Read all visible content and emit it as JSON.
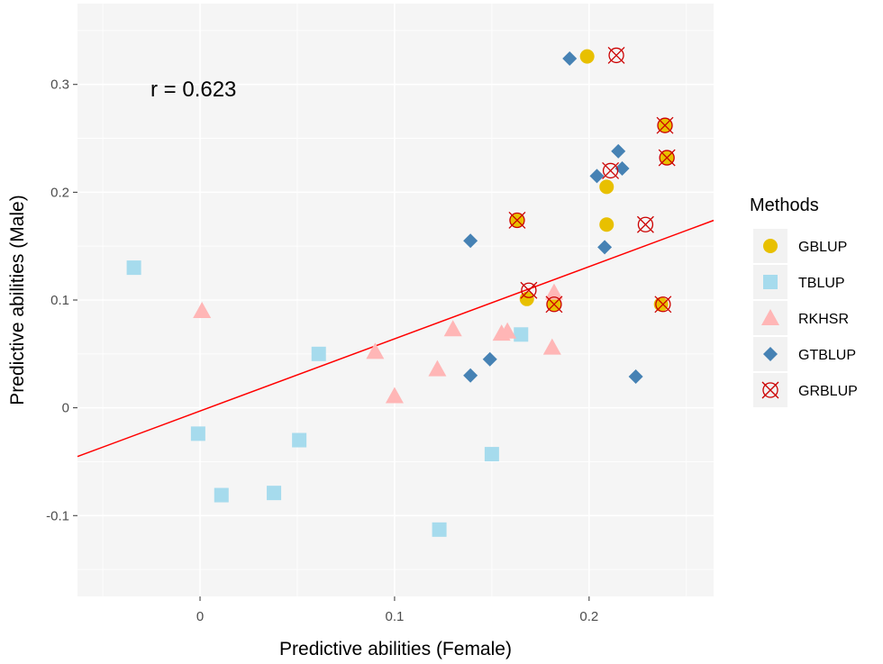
{
  "chart_data": {
    "type": "scatter",
    "title": "",
    "xlabel": "Predictive abilities (Female)",
    "ylabel": "Predictive abilities (Male)",
    "xlim": [
      -0.063,
      0.264
    ],
    "ylim": [
      -0.175,
      0.375
    ],
    "x_ticks": [
      0,
      0.1,
      0.2
    ],
    "x_tick_labels": [
      "0",
      "0.1",
      "0.2"
    ],
    "y_ticks": [
      -0.1,
      0,
      0.1,
      0.2,
      0.3
    ],
    "y_tick_labels": [
      "-0.1",
      "0",
      "0.1",
      "0.2",
      "0.3"
    ],
    "grid": true,
    "annotation": "r = 0.623",
    "legend": {
      "title": "Methods",
      "position": "right"
    },
    "regression_line": {
      "slope": 0.67,
      "intercept": -0.003,
      "color": "#ff0000"
    },
    "series": [
      {
        "name": "GBLUP",
        "marker": "circle",
        "color": "#e8c000",
        "points": [
          [
            0.199,
            0.326
          ],
          [
            0.239,
            0.262
          ],
          [
            0.24,
            0.232
          ],
          [
            0.209,
            0.205
          ],
          [
            0.163,
            0.174
          ],
          [
            0.209,
            0.17
          ],
          [
            0.168,
            0.101
          ],
          [
            0.182,
            0.096
          ],
          [
            0.237,
            0.096
          ]
        ]
      },
      {
        "name": "TBLUP",
        "marker": "square",
        "color": "#a6dbed",
        "points": [
          [
            -0.034,
            0.13
          ],
          [
            0.061,
            0.05
          ],
          [
            0.165,
            0.068
          ],
          [
            -0.001,
            -0.024
          ],
          [
            0.051,
            -0.03
          ],
          [
            0.011,
            -0.081
          ],
          [
            0.038,
            -0.079
          ],
          [
            0.15,
            -0.043
          ],
          [
            0.123,
            -0.113
          ]
        ]
      },
      {
        "name": "RKHSR",
        "marker": "triangle",
        "color": "#ffb6b6",
        "points": [
          [
            0.001,
            0.09
          ],
          [
            0.09,
            0.052
          ],
          [
            0.1,
            0.011
          ],
          [
            0.122,
            0.036
          ],
          [
            0.13,
            0.073
          ],
          [
            0.155,
            0.069
          ],
          [
            0.158,
            0.071
          ],
          [
            0.181,
            0.056
          ],
          [
            0.182,
            0.107
          ]
        ]
      },
      {
        "name": "GTBLUP",
        "marker": "diamond",
        "color": "#4682b4",
        "points": [
          [
            0.19,
            0.324
          ],
          [
            0.215,
            0.238
          ],
          [
            0.217,
            0.222
          ],
          [
            0.204,
            0.215
          ],
          [
            0.139,
            0.155
          ],
          [
            0.208,
            0.149
          ],
          [
            0.139,
            0.03
          ],
          [
            0.149,
            0.045
          ],
          [
            0.224,
            0.029
          ]
        ]
      },
      {
        "name": "GRBLUP",
        "marker": "circle-cross",
        "color": "#cc0000",
        "points": [
          [
            0.214,
            0.327
          ],
          [
            0.239,
            0.262
          ],
          [
            0.24,
            0.232
          ],
          [
            0.211,
            0.22
          ],
          [
            0.163,
            0.174
          ],
          [
            0.229,
            0.17
          ],
          [
            0.169,
            0.109
          ],
          [
            0.182,
            0.096
          ],
          [
            0.238,
            0.096
          ]
        ]
      }
    ]
  }
}
